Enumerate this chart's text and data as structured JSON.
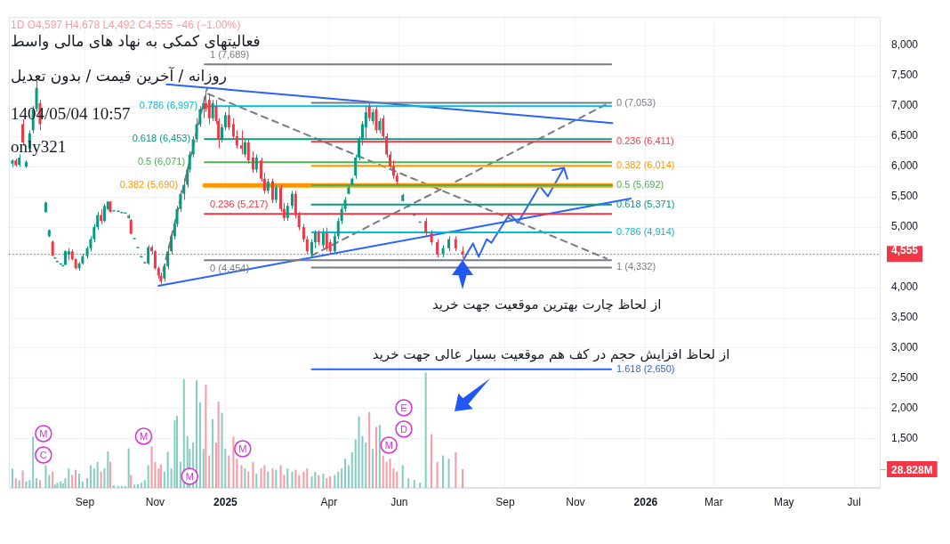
{
  "chart_data": {
    "type": "candlestick",
    "title": "فعالیتهای کمکی به نهاد های مالی واسط",
    "subtitle": "روزانه / آخرین قیمت / بدون تعدیل",
    "annotations": [
      "1D O4,597 H4,678 L4,492 C4,555 −46 (−1.00%)",
      "1404/05/04 10:57",
      "only321",
      "از لحاظ چارت بهترین موقعیت جهت خرید",
      "از لحاظ افزایش حجم در کف هم موقعیت بسیار عالی جهت خرید",
      {
        "text": "C",
        "x": "2024-07-27"
      },
      {
        "text": "M",
        "x": "2024-07-27"
      },
      {
        "text": "M",
        "x": "2024-10-22"
      },
      {
        "text": "M",
        "x": "2024-12-01"
      },
      {
        "text": "M",
        "x": "2025-01-16"
      },
      {
        "text": "M",
        "x": "2025-05-23"
      },
      {
        "text": "D",
        "x": "2025-06-05"
      },
      {
        "text": "E",
        "x": "2025-06-05"
      }
    ],
    "xlim": [
      "2024-06-27",
      "2026-07-24"
    ],
    "xticks": [
      {
        "value": "2024-09-01",
        "label": "Sep"
      },
      {
        "value": "2024-11-01",
        "label": "Nov"
      },
      {
        "value": "2025-01-01",
        "label": "2025"
      },
      {
        "value": "2025-04-01",
        "label": "Apr"
      },
      {
        "value": "2025-06-01",
        "label": "Jun"
      },
      {
        "value": "2025-09-01",
        "label": "Sep"
      },
      {
        "value": "2025-11-01",
        "label": "Nov"
      },
      {
        "value": "2026-01-01",
        "label": "2026"
      },
      {
        "value": "2026-03-01",
        "label": "Mar"
      },
      {
        "value": "2026-05-01",
        "label": "May"
      },
      {
        "value": "2026-07-01",
        "label": "Jul"
      }
    ],
    "ylim": [
      690,
      8470
    ],
    "yticks": [
      {
        "value": 1500,
        "label": "1,500"
      },
      {
        "value": 2000,
        "label": "2,000"
      },
      {
        "value": 2500,
        "label": "2,500"
      },
      {
        "value": 3000,
        "label": "3,000"
      },
      {
        "value": 3500,
        "label": "3,500"
      },
      {
        "value": 4000,
        "label": "4,000"
      },
      {
        "value": 5000,
        "label": "5,000"
      },
      {
        "value": 5500,
        "label": "5,500"
      },
      {
        "value": 6000,
        "label": "6,000"
      },
      {
        "value": 6500,
        "label": "6,500"
      },
      {
        "value": 7000,
        "label": "7,000"
      },
      {
        "value": 7500,
        "label": "7,500"
      },
      {
        "value": 8000,
        "label": "8,000"
      }
    ],
    "y2lim": [
      0,
      726
    ],
    "y2ticks": [
      {
        "value": 28.828,
        "label": "28.828M"
      }
    ],
    "grid": true,
    "ref_lines": [
      {
        "axis": "y",
        "value": 4555,
        "label": "4,555",
        "color": "#f23645",
        "line_style": "dotted"
      }
    ],
    "series": [
      {
        "x": [
          "2024-06-30",
          "2024-07-03",
          "2024-07-06",
          "2024-07-09",
          "2024-07-12",
          "2024-07-15",
          "2024-07-18",
          "2024-07-21",
          "2024-07-24",
          "2024-07-29",
          "2024-08-01",
          "2024-08-04",
          "2024-08-06",
          "2024-08-08",
          "2024-08-11",
          "2024-08-13",
          "2024-08-15",
          "2024-08-18",
          "2024-08-21",
          "2024-08-24",
          "2024-08-27",
          "2024-08-30",
          "2024-09-03",
          "2024-09-06",
          "2024-09-09",
          "2024-09-12",
          "2024-09-15",
          "2024-09-18",
          "2024-09-21",
          "2024-09-23",
          "2024-09-26",
          "2024-09-30",
          "2024-10-03",
          "2024-10-06",
          "2024-10-09",
          "2024-10-11",
          "2024-10-14",
          "2024-10-17",
          "2024-10-20",
          "2024-10-23",
          "2024-10-26",
          "2024-10-29",
          "2024-11-01",
          "2024-11-04",
          "2024-11-06",
          "2024-11-09",
          "2024-11-12",
          "2024-11-15",
          "2024-11-18",
          "2024-11-20",
          "2024-11-23",
          "2024-11-26",
          "2024-11-29",
          "2024-12-01",
          "2024-12-04",
          "2024-12-07",
          "2024-12-10",
          "2024-12-13",
          "2024-12-15",
          "2024-12-18",
          "2024-12-21",
          "2024-12-24",
          "2024-12-26",
          "2024-12-29",
          "2025-01-01",
          "2025-01-04",
          "2025-01-08",
          "2025-01-11",
          "2025-01-15",
          "2025-01-18",
          "2025-01-21",
          "2025-01-25",
          "2025-01-28",
          "2025-02-01",
          "2025-02-04",
          "2025-02-07",
          "2025-02-11",
          "2025-02-14",
          "2025-02-18",
          "2025-02-21",
          "2025-02-24",
          "2025-02-28",
          "2025-03-03",
          "2025-03-06",
          "2025-03-10",
          "2025-03-13",
          "2025-03-17",
          "2025-03-20",
          "2025-03-23",
          "2025-03-27",
          "2025-03-30",
          "2025-04-02",
          "2025-04-06",
          "2025-04-09",
          "2025-04-12",
          "2025-04-15",
          "2025-04-18",
          "2025-04-21",
          "2025-04-24",
          "2025-04-27",
          "2025-04-30",
          "2025-05-03",
          "2025-05-06",
          "2025-05-09",
          "2025-05-12",
          "2025-05-15",
          "2025-05-18",
          "2025-05-21",
          "2025-05-24",
          "2025-05-27",
          "2025-05-30",
          "2025-06-04",
          "2025-06-09",
          "2025-06-14",
          "2025-06-19",
          "2025-06-24",
          "2025-06-29",
          "2025-07-04",
          "2025-07-09",
          "2025-07-14",
          "2025-07-20",
          "2025-07-26"
        ],
        "ohlc": [
          [
            6050,
            6120,
            5990,
            6100
          ],
          [
            6100,
            6130,
            6000,
            6020
          ],
          [
            6030,
            6200,
            6000,
            6150
          ],
          [
            6700,
            6780,
            6350,
            6400
          ],
          [
            6000,
            6100,
            5980,
            6080
          ],
          [
            6300,
            6600,
            6250,
            6550
          ],
          [
            6600,
            7000,
            6550,
            6950
          ],
          [
            6950,
            7420,
            6900,
            7300
          ],
          [
            7050,
            7100,
            6600,
            6700
          ],
          [
            5247,
            5420,
            5240,
            5405
          ],
          [
            4850,
            4960,
            4830,
            4950
          ],
          [
            4760,
            4780,
            4520,
            4530
          ],
          [
            4480,
            4480,
            4480,
            4480
          ],
          [
            4420,
            4420,
            4420,
            4420
          ],
          [
            4380,
            4380,
            4380,
            4380
          ],
          [
            4350,
            4350,
            4350,
            4350
          ],
          [
            4380,
            4620,
            4370,
            4600
          ],
          [
            4550,
            4650,
            4450,
            4600
          ],
          [
            4600,
            4630,
            4450,
            4470
          ],
          [
            4470,
            4480,
            4300,
            4320
          ],
          [
            4320,
            4420,
            4280,
            4400
          ],
          [
            4400,
            4560,
            4380,
            4520
          ],
          [
            4520,
            4680,
            4480,
            4650
          ],
          [
            4650,
            4850,
            4600,
            4800
          ],
          [
            4800,
            5050,
            4750,
            5000
          ],
          [
            5000,
            5250,
            4950,
            5200
          ],
          [
            5200,
            5300,
            5050,
            5100
          ],
          [
            5100,
            5380,
            5080,
            5350
          ],
          [
            5300,
            5430,
            5280,
            5420
          ],
          [
            5420,
            5430,
            5240,
            5250
          ],
          [
            5260,
            5260,
            5260,
            5260
          ],
          [
            5250,
            5250,
            5250,
            5250
          ],
          [
            5230,
            5230,
            5230,
            5230
          ],
          [
            5220,
            5220,
            5220,
            5220
          ],
          [
            5150,
            5210,
            5140,
            5190
          ],
          [
            5120,
            5130,
            4880,
            4890
          ],
          [
            4800,
            4800,
            4800,
            4800
          ],
          [
            4650,
            4650,
            4650,
            4650
          ],
          [
            4500,
            4500,
            4500,
            4500
          ],
          [
            4400,
            4400,
            4400,
            4400
          ],
          [
            4400,
            4700,
            4380,
            4670
          ],
          [
            4670,
            4700,
            4550,
            4600
          ],
          [
            4600,
            4620,
            4300,
            4320
          ],
          [
            4320,
            4350,
            4150,
            4200
          ],
          [
            4200,
            4250,
            4050,
            4100
          ],
          [
            4150,
            4400,
            4100,
            4350
          ],
          [
            4350,
            4650,
            4300,
            4600
          ],
          [
            4600,
            4900,
            4550,
            4850
          ],
          [
            4850,
            5100,
            4800,
            5050
          ],
          [
            5050,
            5350,
            5000,
            5300
          ],
          [
            5300,
            5600,
            5250,
            5550
          ],
          [
            5550,
            5800,
            5450,
            5700
          ],
          [
            5700,
            6000,
            5650,
            5950
          ],
          [
            5950,
            6250,
            5900,
            6200
          ],
          [
            6200,
            6500,
            6150,
            6450
          ],
          [
            6450,
            6800,
            6400,
            6700
          ],
          [
            6700,
            7000,
            6650,
            6950
          ],
          [
            6950,
            7150,
            6800,
            7050
          ],
          [
            7050,
            7250,
            6900,
            6950
          ],
          [
            7100,
            7200,
            6700,
            6800
          ],
          [
            6800,
            7100,
            6750,
            7050
          ],
          [
            7000,
            7100,
            6700,
            6750
          ],
          [
            6750,
            6800,
            6300,
            6450
          ],
          [
            6450,
            6700,
            6400,
            6650
          ],
          [
            6650,
            6900,
            6600,
            6850
          ],
          [
            6850,
            7000,
            6600,
            6650
          ],
          [
            6700,
            6800,
            6450,
            6500
          ],
          [
            6500,
            6600,
            6300,
            6350
          ],
          [
            6350,
            6600,
            6200,
            6300
          ],
          [
            6200,
            6450,
            6150,
            6400
          ],
          [
            6400,
            6450,
            6050,
            6100
          ],
          [
            6150,
            6250,
            5900,
            5950
          ],
          [
            5950,
            6200,
            5900,
            6150
          ],
          [
            6100,
            6150,
            5750,
            5800
          ],
          [
            5800,
            5900,
            5550,
            5600
          ],
          [
            5600,
            5800,
            5550,
            5750
          ],
          [
            5750,
            5800,
            5400,
            5450
          ],
          [
            5450,
            5700,
            5400,
            5650
          ],
          [
            5650,
            5700,
            5250,
            5300
          ],
          [
            5300,
            5400,
            5100,
            5150
          ],
          [
            5150,
            5400,
            5100,
            5350
          ],
          [
            5350,
            5600,
            5300,
            5550
          ],
          [
            5550,
            5600,
            5150,
            5200
          ],
          [
            5200,
            5250,
            4950,
            5000
          ],
          [
            5000,
            5050,
            4750,
            4800
          ],
          [
            4800,
            4850,
            4550,
            4600
          ],
          [
            4550,
            4800,
            4500,
            4750
          ],
          [
            4750,
            4950,
            4650,
            4900
          ],
          [
            4900,
            4950,
            4700,
            4750
          ],
          [
            4700,
            4980,
            4650,
            4900
          ],
          [
            4900,
            4990,
            4600,
            4650
          ],
          [
            4750,
            4800,
            4550,
            4600
          ],
          [
            4600,
            4900,
            4580,
            4850
          ],
          [
            4850,
            5150,
            4800,
            5100
          ],
          [
            5100,
            5350,
            5050,
            5300
          ],
          [
            5300,
            5500,
            5250,
            5450
          ],
          [
            5550,
            5680,
            5540,
            5650
          ],
          [
            5700,
            5820,
            5690,
            5800
          ],
          [
            5850,
            6200,
            5800,
            6150
          ],
          [
            6150,
            6500,
            6100,
            6450
          ],
          [
            6450,
            6750,
            6350,
            6700
          ],
          [
            6650,
            7000,
            6450,
            6900
          ],
          [
            7000,
            7050,
            6750,
            6800
          ],
          [
            6750,
            6950,
            6700,
            6900
          ],
          [
            6950,
            7000,
            6550,
            6600
          ],
          [
            6600,
            6800,
            6550,
            6750
          ],
          [
            6800,
            6850,
            6450,
            6500
          ],
          [
            6500,
            6550,
            6150,
            6200
          ],
          [
            6200,
            6250,
            5950,
            6000
          ],
          [
            6000,
            6100,
            5800,
            5850
          ],
          [
            5850,
            5900,
            5700,
            5750
          ],
          [
            5430,
            5550,
            5420,
            5530
          ],
          [
            5330,
            5330,
            5330,
            5330
          ],
          [
            5190,
            5190,
            5190,
            5190
          ],
          [
            5070,
            5070,
            5070,
            5070
          ],
          [
            5100,
            5150,
            4850,
            4900
          ],
          [
            4900,
            4950,
            4700,
            4750
          ],
          [
            4750,
            4800,
            4500,
            4550
          ],
          [
            4550,
            4700,
            4500,
            4650
          ],
          [
            4650,
            4850,
            4600,
            4800
          ],
          [
            4800,
            4850,
            4600,
            4650
          ],
          [
            4597,
            4678,
            4492,
            4555
          ]
        ],
        "colors": [
          "#089981",
          "#f23645",
          "#089981",
          "#f23645",
          "#089981",
          "#089981",
          "#089981",
          "#089981",
          "#f23645",
          "#089981",
          "#089981",
          "#f23645",
          "#089981",
          "#089981",
          "#089981",
          "#089981",
          "#089981",
          "#089981",
          "#f23645",
          "#f23645",
          "#089981",
          "#089981",
          "#089981",
          "#089981",
          "#089981",
          "#089981",
          "#f23645",
          "#089981",
          "#089981",
          "#f23645",
          "#089981",
          "#089981",
          "#089981",
          "#089981",
          "#089981",
          "#f23645",
          "#089981",
          "#089981",
          "#089981",
          "#089981",
          "#089981",
          "#f23645",
          "#f23645",
          "#f23645",
          "#f23645",
          "#089981",
          "#089981",
          "#089981",
          "#089981",
          "#089981",
          "#089981",
          "#089981",
          "#089981",
          "#089981",
          "#089981",
          "#089981",
          "#089981",
          "#089981",
          "#f23645",
          "#f23645",
          "#089981",
          "#f23645",
          "#f23645",
          "#089981",
          "#089981",
          "#f23645",
          "#f23645",
          "#f23645",
          "#f23645",
          "#089981",
          "#f23645",
          "#f23645",
          "#089981",
          "#f23645",
          "#f23645",
          "#089981",
          "#f23645",
          "#089981",
          "#f23645",
          "#f23645",
          "#089981",
          "#089981",
          "#f23645",
          "#f23645",
          "#f23645",
          "#f23645",
          "#089981",
          "#089981",
          "#f23645",
          "#089981",
          "#f23645",
          "#f23645",
          "#089981",
          "#089981",
          "#089981",
          "#089981",
          "#089981",
          "#089981",
          "#089981",
          "#089981",
          "#089981",
          "#089981",
          "#f23645",
          "#089981",
          "#f23645",
          "#089981",
          "#f23645",
          "#f23645",
          "#f23645",
          "#f23645",
          "#f23645",
          "#089981",
          "#089981",
          "#089981",
          "#089981",
          "#f23645",
          "#f23645",
          "#f23645",
          "#089981",
          "#089981",
          "#f23645",
          "#f23645"
        ]
      },
      {
        "type": "bar",
        "axis": "y2",
        "x": [
          "2024-06-30",
          "2024-07-03",
          "2024-07-06",
          "2024-07-09",
          "2024-07-12",
          "2024-07-15",
          "2024-07-18",
          "2024-07-21",
          "2024-07-24",
          "2024-07-29",
          "2024-08-01",
          "2024-08-04",
          "2024-08-06",
          "2024-08-08",
          "2024-08-11",
          "2024-08-13",
          "2024-08-15",
          "2024-08-18",
          "2024-08-21",
          "2024-08-24",
          "2024-08-27",
          "2024-08-30",
          "2024-09-03",
          "2024-09-06",
          "2024-09-09",
          "2024-09-12",
          "2024-09-15",
          "2024-09-18",
          "2024-09-21",
          "2024-09-23",
          "2024-09-26",
          "2024-09-30",
          "2024-10-03",
          "2024-10-06",
          "2024-10-09",
          "2024-10-11",
          "2024-10-14",
          "2024-10-17",
          "2024-10-20",
          "2024-10-23",
          "2024-10-26",
          "2024-10-29",
          "2024-11-01",
          "2024-11-04",
          "2024-11-06",
          "2024-11-09",
          "2024-11-12",
          "2024-11-15",
          "2024-11-18",
          "2024-11-20",
          "2024-11-23",
          "2024-11-26",
          "2024-11-29",
          "2024-12-01",
          "2024-12-04",
          "2024-12-07",
          "2024-12-10",
          "2024-12-13",
          "2024-12-15",
          "2024-12-18",
          "2024-12-21",
          "2024-12-24",
          "2024-12-26",
          "2024-12-29",
          "2025-01-01",
          "2025-01-04",
          "2025-01-08",
          "2025-01-11",
          "2025-01-15",
          "2025-01-18",
          "2025-01-21",
          "2025-01-25",
          "2025-01-28",
          "2025-02-01",
          "2025-02-04",
          "2025-02-07",
          "2025-02-11",
          "2025-02-14",
          "2025-02-18",
          "2025-02-21",
          "2025-02-24",
          "2025-02-28",
          "2025-03-03",
          "2025-03-06",
          "2025-03-10",
          "2025-03-13",
          "2025-03-17",
          "2025-03-20",
          "2025-03-23",
          "2025-03-27",
          "2025-03-30",
          "2025-04-02",
          "2025-04-06",
          "2025-04-09",
          "2025-04-12",
          "2025-04-15",
          "2025-04-18",
          "2025-04-21",
          "2025-04-24",
          "2025-04-27",
          "2025-04-30",
          "2025-05-03",
          "2025-05-06",
          "2025-05-09",
          "2025-05-12",
          "2025-05-15",
          "2025-05-18",
          "2025-05-21",
          "2025-05-24",
          "2025-05-27",
          "2025-05-30",
          "2025-06-04",
          "2025-06-09",
          "2025-06-14",
          "2025-06-19",
          "2025-06-24",
          "2025-06-29",
          "2025-07-04",
          "2025-07-09",
          "2025-07-14",
          "2025-07-20",
          "2025-07-26"
        ],
        "values": [
          30,
          15,
          12,
          27,
          10,
          12,
          79,
          15,
          12,
          35,
          20,
          25,
          5,
          8,
          10,
          7,
          15,
          30,
          20,
          28,
          22,
          10,
          15,
          35,
          30,
          40,
          25,
          30,
          56,
          40,
          4,
          3,
          3,
          3,
          61,
          20,
          5,
          6,
          8,
          12,
          35,
          64,
          40,
          30,
          36,
          25,
          56,
          30,
          104,
          111,
          40,
          168,
          80,
          60,
          70,
          166,
          132,
          60,
          159,
          50,
          106,
          70,
          133,
          116,
          60,
          50,
          79,
          45,
          35,
          30,
          25,
          40,
          22,
          30,
          35,
          25,
          30,
          28,
          35,
          20,
          30,
          25,
          28,
          20,
          25,
          30,
          18,
          25,
          20,
          22,
          15,
          18,
          20,
          25,
          30,
          45,
          35,
          55,
          75,
          110,
          80,
          70,
          117,
          60,
          94,
          97,
          50,
          40,
          45,
          30,
          25,
          35,
          15,
          12,
          8,
          178,
          83,
          40,
          50,
          45,
          55,
          28.828
        ],
        "colors": [
          "#83ccc0",
          "#f89aa2",
          "#83ccc0",
          "#f89aa2",
          "#83ccc0",
          "#83ccc0",
          "#83ccc0",
          "#83ccc0",
          "#f89aa2",
          "#83ccc0",
          "#83ccc0",
          "#f89aa2",
          "#83ccc0",
          "#83ccc0",
          "#83ccc0",
          "#83ccc0",
          "#83ccc0",
          "#83ccc0",
          "#f89aa2",
          "#f89aa2",
          "#83ccc0",
          "#83ccc0",
          "#83ccc0",
          "#83ccc0",
          "#83ccc0",
          "#83ccc0",
          "#f89aa2",
          "#83ccc0",
          "#83ccc0",
          "#f89aa2",
          "#83ccc0",
          "#83ccc0",
          "#83ccc0",
          "#83ccc0",
          "#83ccc0",
          "#f89aa2",
          "#83ccc0",
          "#83ccc0",
          "#83ccc0",
          "#83ccc0",
          "#83ccc0",
          "#f89aa2",
          "#f89aa2",
          "#f89aa2",
          "#f89aa2",
          "#83ccc0",
          "#83ccc0",
          "#83ccc0",
          "#83ccc0",
          "#83ccc0",
          "#83ccc0",
          "#83ccc0",
          "#83ccc0",
          "#83ccc0",
          "#83ccc0",
          "#83ccc0",
          "#83ccc0",
          "#83ccc0",
          "#f89aa2",
          "#f89aa2",
          "#83ccc0",
          "#f89aa2",
          "#f89aa2",
          "#83ccc0",
          "#83ccc0",
          "#f89aa2",
          "#f89aa2",
          "#f89aa2",
          "#f89aa2",
          "#83ccc0",
          "#f89aa2",
          "#f89aa2",
          "#83ccc0",
          "#f89aa2",
          "#f89aa2",
          "#83ccc0",
          "#f89aa2",
          "#83ccc0",
          "#f89aa2",
          "#f89aa2",
          "#83ccc0",
          "#83ccc0",
          "#f89aa2",
          "#f89aa2",
          "#f89aa2",
          "#f89aa2",
          "#83ccc0",
          "#83ccc0",
          "#f89aa2",
          "#83ccc0",
          "#f89aa2",
          "#f89aa2",
          "#83ccc0",
          "#83ccc0",
          "#83ccc0",
          "#83ccc0",
          "#83ccc0",
          "#83ccc0",
          "#83ccc0",
          "#83ccc0",
          "#83ccc0",
          "#83ccc0",
          "#f89aa2",
          "#83ccc0",
          "#f89aa2",
          "#83ccc0",
          "#f89aa2",
          "#f89aa2",
          "#f89aa2",
          "#f89aa2",
          "#f89aa2",
          "#83ccc0",
          "#83ccc0",
          "#83ccc0",
          "#83ccc0",
          "#83ccc0",
          "#f89aa2",
          "#f89aa2",
          "#83ccc0",
          "#83ccc0",
          "#f89aa2",
          "#f89aa2"
        ]
      },
      {
        "type": "line",
        "name": "0 (4,454)",
        "color": "#787b86",
        "x": [
          "2024-12-14",
          "2025-12-02"
        ],
        "values": [
          4454,
          4454
        ]
      },
      {
        "type": "line",
        "name": "0.236 (5,217)",
        "color": "#f23645",
        "x": [
          "2024-12-14",
          "2025-12-02"
        ],
        "values": [
          5217,
          5217
        ]
      },
      {
        "type": "line",
        "name": "0.382 (5,690)",
        "color": "#ff9800",
        "x": [
          "2024-12-14",
          "2025-12-02"
        ],
        "values": [
          5690,
          5690
        ]
      },
      {
        "type": "line",
        "name": "0.5 (6,071)",
        "color": "#4caf50",
        "x": [
          "2024-12-14",
          "2025-12-02"
        ],
        "values": [
          6071,
          6071
        ]
      },
      {
        "type": "line",
        "name": "0.618 (6,453)",
        "color": "#089981",
        "x": [
          "2024-12-14",
          "2025-12-02"
        ],
        "values": [
          6453,
          6453
        ]
      },
      {
        "type": "line",
        "name": "0.786 (6,997)",
        "color": "#00bcd4",
        "x": [
          "2024-12-14",
          "2025-12-02"
        ],
        "values": [
          6997,
          6997
        ]
      },
      {
        "type": "line",
        "name": "1 (7,689)",
        "color": "#787b86",
        "x": [
          "2024-12-14",
          "2025-12-02"
        ],
        "values": [
          7689,
          7689
        ]
      },
      {
        "type": "line",
        "name": "0 (7,053)",
        "color": "#787b86",
        "x": [
          "2025-03-17",
          "2025-12-02"
        ],
        "values": [
          7053,
          7053
        ]
      },
      {
        "type": "line",
        "name": "0.236 (6,411)",
        "color": "#f23645",
        "x": [
          "2025-03-17",
          "2025-12-02"
        ],
        "values": [
          6411,
          6411
        ]
      },
      {
        "type": "line",
        "name": "0.382 (6,014)",
        "color": "#ff9800",
        "x": [
          "2025-03-17",
          "2025-12-02"
        ],
        "values": [
          6014,
          6014
        ]
      },
      {
        "type": "line",
        "name": "0.5 (5,692)",
        "color": "#4caf50",
        "x": [
          "2025-03-17",
          "2025-12-02"
        ],
        "values": [
          5692,
          5692
        ]
      },
      {
        "type": "line",
        "name": "0.618 (5,371)",
        "color": "#089981",
        "x": [
          "2025-03-17",
          "2025-12-02"
        ],
        "values": [
          5371,
          5371
        ]
      },
      {
        "type": "line",
        "name": "0.786 (4,914)",
        "color": "#00bcd4",
        "x": [
          "2025-03-17",
          "2025-12-02"
        ],
        "values": [
          4914,
          4914
        ]
      },
      {
        "type": "line",
        "name": "1 (4,332)",
        "color": "#787b86",
        "x": [
          "2025-03-17",
          "2025-12-02"
        ],
        "values": [
          4332,
          4332
        ]
      },
      {
        "type": "line",
        "name": "1.618 (2,650)",
        "color": "#2962ff",
        "x": [
          "2025-03-17",
          "2025-12-02"
        ],
        "values": [
          2650,
          2650
        ]
      },
      {
        "type": "line",
        "color": "#2962ff",
        "x": [
          "2024-11-11",
          "2025-12-03"
        ],
        "values": [
          7360,
          6720
        ]
      },
      {
        "type": "line",
        "color": "#2962ff",
        "x": [
          "2024-11-04",
          "2025-12-19"
        ],
        "values": [
          4030,
          5470
        ]
      },
      {
        "type": "line",
        "color": "#787b86",
        "line_style": "dashed",
        "x": [
          "2024-11-08",
          "2024-12-16"
        ],
        "values": [
          4280,
          7280
        ]
      },
      {
        "type": "line",
        "color": "#787b86",
        "line_style": "dashed",
        "x": [
          "2024-12-17",
          "2025-11-28"
        ],
        "values": [
          7200,
          4480
        ]
      },
      {
        "type": "line",
        "color": "#787b86",
        "line_style": "dashed",
        "x": [
          "2025-03-17",
          "2025-11-28"
        ],
        "values": [
          4530,
          7030
        ]
      },
      {
        "type": "line",
        "color": "#2962ff",
        "x": [
          "2025-07-27",
          "2025-08-04",
          "2025-08-09",
          "2025-08-16",
          "2025-08-20",
          "2025-09-05",
          "2025-09-12",
          "2025-10-01",
          "2025-10-08",
          "2025-10-22"
        ],
        "values": [
          4470,
          4730,
          4510,
          4800,
          4740,
          5220,
          5070,
          5680,
          5510,
          5980
        ]
      },
      {
        "type": "line",
        "color": "#2962ff",
        "x": [
          "2025-10-12",
          "2025-10-22",
          "2025-10-25"
        ],
        "values": [
          5940,
          5980,
          5800
        ]
      }
    ]
  }
}
